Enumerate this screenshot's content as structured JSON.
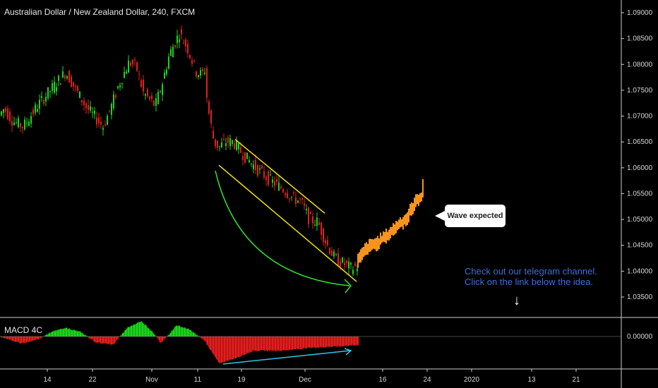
{
  "header": {
    "title": "Australian Dollar / New Zealand Dollar, 240, FXCM"
  },
  "chart_data": {
    "type": "candlestick",
    "title": "Australian Dollar / New Zealand Dollar, 240, FXCM",
    "ylim": [
      1.0335,
      1.0915
    ],
    "y_ticks": [
      "1.09000",
      "1.08500",
      "1.08000",
      "1.07500",
      "1.07000",
      "1.06500",
      "1.06000",
      "1.05500",
      "1.05000",
      "1.04500",
      "1.04000",
      "1.03500"
    ],
    "x_ticks": [
      {
        "label": "14",
        "x": 67
      },
      {
        "label": "22",
        "x": 131
      },
      {
        "label": "Nov",
        "x": 215
      },
      {
        "label": "11",
        "x": 280
      },
      {
        "label": "19",
        "x": 342
      },
      {
        "label": "Dec",
        "x": 432
      },
      {
        "label": "16",
        "x": 542
      },
      {
        "label": "24",
        "x": 605
      },
      {
        "label": "2020",
        "x": 668
      },
      {
        "label": "13",
        "x": 753
      },
      {
        "label": "21",
        "x": 816
      }
    ],
    "price_path": [
      [
        1.07,
        0
      ],
      [
        1.0715,
        8
      ],
      [
        1.069,
        20
      ],
      [
        1.068,
        35
      ],
      [
        1.072,
        55
      ],
      [
        1.0745,
        70
      ],
      [
        1.0785,
        95
      ],
      [
        1.075,
        110
      ],
      [
        1.0715,
        125
      ],
      [
        1.07,
        135
      ],
      [
        1.068,
        148
      ],
      [
        1.072,
        160
      ],
      [
        1.076,
        170
      ],
      [
        1.0805,
        185
      ],
      [
        1.0795,
        195
      ],
      [
        1.0745,
        205
      ],
      [
        1.072,
        222
      ],
      [
        1.0765,
        232
      ],
      [
        1.082,
        242
      ],
      [
        1.086,
        256
      ],
      [
        1.083,
        268
      ],
      [
        1.0785,
        280
      ],
      [
        1.078,
        288
      ],
      [
        1.079,
        292
      ],
      [
        1.072,
        296
      ],
      [
        1.065,
        305
      ],
      [
        1.064,
        312
      ],
      [
        1.065,
        322
      ],
      [
        1.065,
        332
      ],
      [
        1.062,
        350
      ],
      [
        1.0595,
        368
      ],
      [
        1.0575,
        385
      ],
      [
        1.056,
        402
      ],
      [
        1.054,
        418
      ],
      [
        1.0535,
        428
      ],
      [
        1.05,
        440
      ],
      [
        1.0495,
        452
      ],
      [
        1.0455,
        464
      ],
      [
        1.0425,
        476
      ],
      [
        1.0415,
        488
      ],
      [
        1.0405,
        500
      ],
      [
        1.041,
        507
      ]
    ],
    "projection_path": [
      [
        1.042,
        507
      ],
      [
        1.0445,
        520
      ],
      [
        1.0455,
        535
      ],
      [
        1.047,
        550
      ],
      [
        1.049,
        565
      ],
      [
        1.05,
        575
      ],
      [
        1.0525,
        585
      ],
      [
        1.054,
        592
      ],
      [
        1.0545,
        598
      ],
      [
        1.057,
        600
      ]
    ],
    "channel": {
      "upper": [
        [
          1.0655,
          333
        ],
        [
          1.0512,
          460
        ]
      ],
      "lower": [
        [
          1.0605,
          310
        ],
        [
          1.038,
          505
        ]
      ]
    },
    "macd": {
      "label": "MACD 4C",
      "y_tick": "0.00000"
    },
    "colors": {
      "up": "#1fd31f",
      "down": "#e02020",
      "projection": "#f7941d",
      "channel": "#f5e400",
      "arc": "#2ee62e",
      "divergence": "#2ec7e0"
    }
  },
  "callout": {
    "text": "Wave expected"
  },
  "note": {
    "line1": "Check out our telegram channel.",
    "line2": "Click on the link below the idea."
  }
}
